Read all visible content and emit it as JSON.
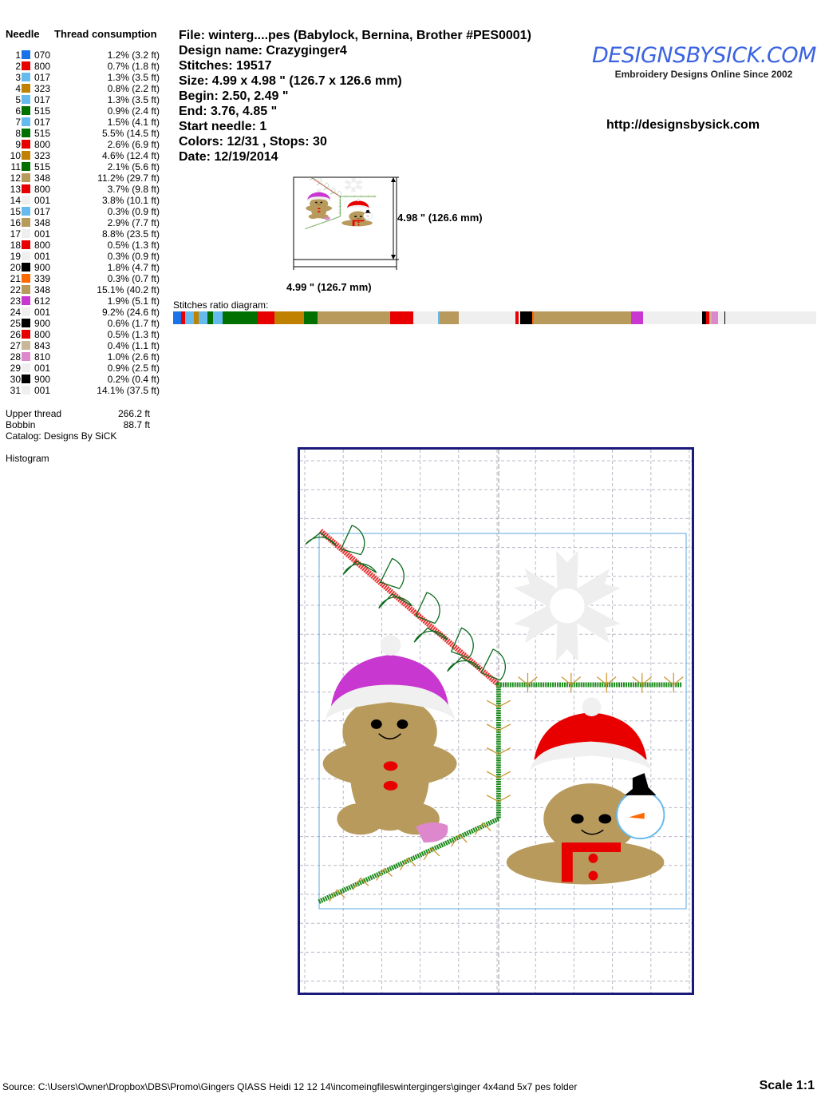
{
  "table": {
    "needle_header": "Needle",
    "thread_header": "Thread consumption",
    "needles": [
      {
        "n": "1",
        "code": "070",
        "color": "#1a73e8",
        "pct": "1.2% (3.2 ft)",
        "v": 1.2
      },
      {
        "n": "2",
        "code": "800",
        "color": "#e80000",
        "pct": "0.7% (1.8 ft)",
        "v": 0.7
      },
      {
        "n": "3",
        "code": "017",
        "color": "#66bbee",
        "pct": "1.3% (3.5 ft)",
        "v": 1.3
      },
      {
        "n": "4",
        "code": "323",
        "color": "#c08000",
        "pct": "0.8% (2.2 ft)",
        "v": 0.8
      },
      {
        "n": "5",
        "code": "017",
        "color": "#66bbee",
        "pct": "1.3% (3.5 ft)",
        "v": 1.3
      },
      {
        "n": "6",
        "code": "515",
        "color": "#007000",
        "pct": "0.9% (2.4 ft)",
        "v": 0.9
      },
      {
        "n": "7",
        "code": "017",
        "color": "#66bbee",
        "pct": "1.5% (4.1 ft)",
        "v": 1.5
      },
      {
        "n": "8",
        "code": "515",
        "color": "#007000",
        "pct": "5.5% (14.5 ft)",
        "v": 5.5
      },
      {
        "n": "9",
        "code": "800",
        "color": "#e80000",
        "pct": "2.6% (6.9 ft)",
        "v": 2.6
      },
      {
        "n": "10",
        "code": "323",
        "color": "#c08000",
        "pct": "4.6% (12.4 ft)",
        "v": 4.6
      },
      {
        "n": "11",
        "code": "515",
        "color": "#007000",
        "pct": "2.1% (5.6 ft)",
        "v": 2.1
      },
      {
        "n": "12",
        "code": "348",
        "color": "#b89a5c",
        "pct": "11.2% (29.7 ft)",
        "v": 11.2
      },
      {
        "n": "13",
        "code": "800",
        "color": "#e80000",
        "pct": "3.7% (9.8 ft)",
        "v": 3.7
      },
      {
        "n": "14",
        "code": "001",
        "color": "#efefef",
        "pct": "3.8% (10.1 ft)",
        "v": 3.8
      },
      {
        "n": "15",
        "code": "017",
        "color": "#66bbee",
        "pct": "0.3% (0.9 ft)",
        "v": 0.3
      },
      {
        "n": "16",
        "code": "348",
        "color": "#b89a5c",
        "pct": "2.9% (7.7 ft)",
        "v": 2.9
      },
      {
        "n": "17",
        "code": "001",
        "color": "#efefef",
        "pct": "8.8% (23.5 ft)",
        "v": 8.8
      },
      {
        "n": "18",
        "code": "800",
        "color": "#e80000",
        "pct": "0.5% (1.3 ft)",
        "v": 0.5
      },
      {
        "n": "19",
        "code": "001",
        "color": "#efefef",
        "pct": "0.3% (0.9 ft)",
        "v": 0.3
      },
      {
        "n": "20",
        "code": "900",
        "color": "#000000",
        "pct": "1.8% (4.7 ft)",
        "v": 1.8
      },
      {
        "n": "21",
        "code": "339",
        "color": "#ff6a00",
        "pct": "0.3% (0.7 ft)",
        "v": 0.3
      },
      {
        "n": "22",
        "code": "348",
        "color": "#b89a5c",
        "pct": "15.1% (40.2 ft)",
        "v": 15.1
      },
      {
        "n": "23",
        "code": "612",
        "color": "#c837d0",
        "pct": "1.9% (5.1 ft)",
        "v": 1.9
      },
      {
        "n": "24",
        "code": "001",
        "color": "#efefef",
        "pct": "9.2% (24.6 ft)",
        "v": 9.2
      },
      {
        "n": "25",
        "code": "900",
        "color": "#000000",
        "pct": "0.6% (1.7 ft)",
        "v": 0.6
      },
      {
        "n": "26",
        "code": "800",
        "color": "#e80000",
        "pct": "0.5% (1.3 ft)",
        "v": 0.5
      },
      {
        "n": "27",
        "code": "843",
        "color": "#c8b89a",
        "pct": "0.4% (1.1 ft)",
        "v": 0.4
      },
      {
        "n": "28",
        "code": "810",
        "color": "#dd88cc",
        "pct": "1.0% (2.6 ft)",
        "v": 1.0
      },
      {
        "n": "29",
        "code": "001",
        "color": "#efefef",
        "pct": "0.9% (2.5 ft)",
        "v": 0.9
      },
      {
        "n": "30",
        "code": "900",
        "color": "#000000",
        "pct": "0.2% (0.4 ft)",
        "v": 0.2
      },
      {
        "n": "31",
        "code": "001",
        "color": "#efefef",
        "pct": "14.1% (37.5 ft)",
        "v": 14.1
      }
    ],
    "upper_thread_label": "Upper thread",
    "upper_thread_value": "266.2 ft",
    "bobbin_label": "Bobbin",
    "bobbin_value": "88.7 ft",
    "catalog": "Catalog: Designs By SiCK",
    "histogram": "Histogram"
  },
  "info": {
    "file": "File: winterg....pes  (Babylock, Bernina, Brother #PES0001)",
    "design_name": "Design name: Crazyginger4",
    "stitches": "Stitches: 19517",
    "size": "Size: 4.99 x 4.98 \" (126.7 x 126.6 mm)",
    "begin": "Begin: 2.50, 2.49 \"",
    "end": "End: 3.76, 4.85 \"",
    "start_needle": "Start needle: 1",
    "colors": "Colors: 12/31 , Stops: 30",
    "date": "Date: 12/19/2014"
  },
  "logo": {
    "text": "DESIGNSBYSICK.COM",
    "tagline": "Embroidery Designs Online Since 2002",
    "color": "#3b63e0"
  },
  "url": "http://designsbysick.com",
  "thumbnail": {
    "height_label": "4.98 \" (126.6 mm)",
    "width_label": "4.99 \" (126.7 mm)"
  },
  "ratio_label": "Stitches ratio diagram:",
  "footer": {
    "source": "Source: C:\\Users\\Owner\\Dropbox\\DBS\\Promo\\Gingers QIASS Heidi  12 12 14\\incomeingfileswintergingers\\ginger 4x4and 5x7 pes folder",
    "scale": "Scale 1:1"
  }
}
